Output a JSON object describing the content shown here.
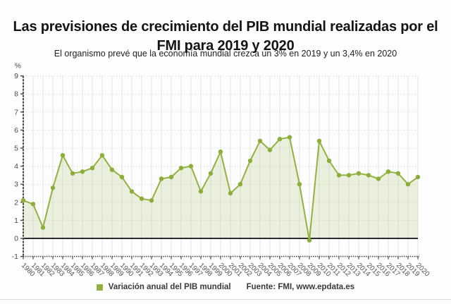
{
  "title": "Las previsiones de crecimiento del PIB mundial realizadas por el FMI para 2019 y 2020",
  "subtitle": "El organismo prevé que la economía mundial crezca un 3% en 2019 y un 3,4% en 2020",
  "legend": {
    "label": "Variación anual del PIB mundial"
  },
  "source": "Fuente: FMI, www.epdata.es",
  "colors": {
    "line": "#92b13f",
    "marker": "#8cae3a",
    "area_fill": "rgba(146,177,63,0.16)",
    "zero_line": "#2b2b2b",
    "axis": "#4a4a4a",
    "grid_vertical": "#e4e4e4",
    "grid_horizontal": "#cfcfcf",
    "tick_label": "#4a4a4a",
    "x_label": "#555555"
  },
  "chart_data": {
    "type": "line",
    "title": "Las previsiones de crecimiento del PIB mundial realizadas por el FMI para 2019 y 2020",
    "subtitle": "El organismo prevé que la economía mundial crezca un 3% en 2019 y un 3,4% en 2020",
    "xlabel": "",
    "ylabel": "%",
    "ylim": [
      -1,
      9
    ],
    "y_ticks": [
      -1,
      0,
      1,
      2,
      3,
      4,
      5,
      6,
      7,
      8,
      9
    ],
    "grid": true,
    "legend_position": "bottom",
    "x": [
      1980,
      1981,
      1982,
      1983,
      1984,
      1985,
      1986,
      1987,
      1988,
      1989,
      1990,
      1991,
      1992,
      1993,
      1994,
      1995,
      1996,
      1997,
      1998,
      1999,
      2000,
      2001,
      2002,
      2003,
      2004,
      2005,
      2006,
      2007,
      2008,
      2009,
      2010,
      2011,
      2012,
      2013,
      2014,
      2015,
      2016,
      2017,
      2018,
      2019,
      2020
    ],
    "series": [
      {
        "name": "Variación anual del PIB mundial",
        "values": [
          2.1,
          1.9,
          0.6,
          2.8,
          4.6,
          3.6,
          3.7,
          3.9,
          4.6,
          3.8,
          3.4,
          2.6,
          2.2,
          2.1,
          3.3,
          3.4,
          3.9,
          4.0,
          2.6,
          3.6,
          4.8,
          2.5,
          3.0,
          4.3,
          5.4,
          4.9,
          5.5,
          5.6,
          3.0,
          -0.1,
          5.4,
          4.3,
          3.5,
          3.5,
          3.6,
          3.5,
          3.3,
          3.7,
          3.6,
          3.0,
          3.4
        ]
      }
    ],
    "source": "Fuente: FMI, www.epdata.es"
  }
}
